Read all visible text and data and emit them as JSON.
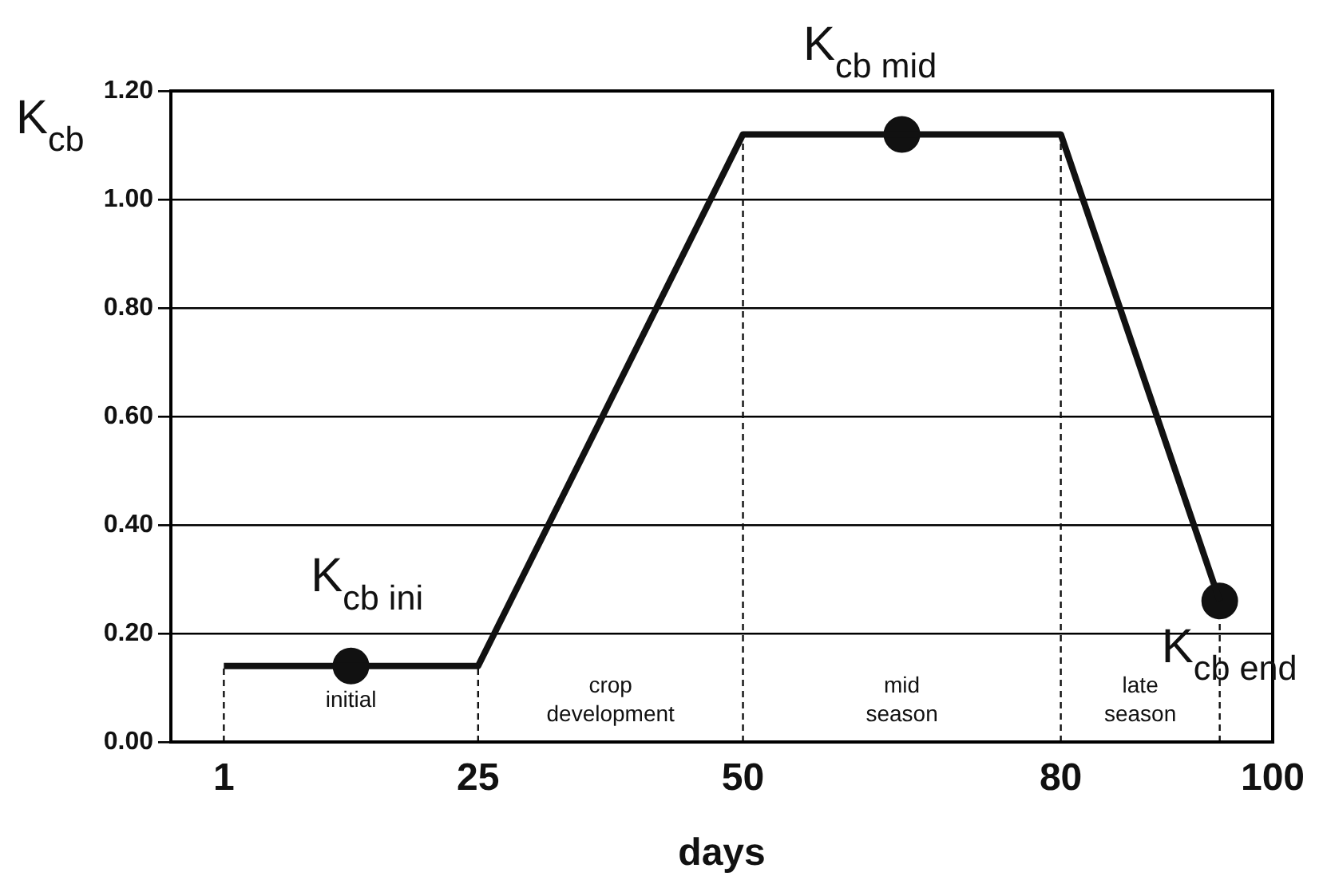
{
  "chart_data": {
    "type": "line",
    "xlabel": "days",
    "ylabel": "K$_{cb}$",
    "xlim": [
      -4,
      100
    ],
    "xticks": [
      1,
      25,
      50,
      80,
      100
    ],
    "ylim": [
      0,
      1.2
    ],
    "yticks": [
      {
        "value": 0,
        "label": "0.00"
      },
      {
        "value": 0.2,
        "label": "0.20"
      },
      {
        "value": 0.4,
        "label": "0.40"
      },
      {
        "value": 0.6,
        "label": "0.60"
      },
      {
        "value": 0.8,
        "label": "0.80"
      },
      {
        "value": 1.0,
        "label": "1.00"
      },
      {
        "value": 1.2,
        "label": "1.20"
      }
    ],
    "grid": "y",
    "legend": false,
    "series": [
      {
        "color": "#111111",
        "marker": "none",
        "x": [
          1,
          25,
          50,
          80,
          95
        ],
        "values": [
          0.14,
          0.14,
          1.12,
          1.12,
          0.26
        ]
      },
      {
        "type": "scatter",
        "color": "#111111",
        "marker": "circle",
        "x": [
          13,
          65,
          95
        ],
        "values": [
          0.14,
          1.12,
          0.26
        ]
      }
    ],
    "ref_lines": [
      {
        "axis": "x",
        "value": 1,
        "line_style": "dashed",
        "color": "#111111"
      },
      {
        "axis": "x",
        "value": 25,
        "line_style": "dashed",
        "color": "#111111"
      },
      {
        "axis": "x",
        "value": 50,
        "line_style": "dashed",
        "color": "#111111"
      },
      {
        "axis": "x",
        "value": 80,
        "line_style": "dashed",
        "color": "#111111"
      },
      {
        "axis": "x",
        "value": 95,
        "line_style": "dashed",
        "color": "#111111"
      }
    ],
    "annotations": [
      {
        "text": "K$_{cb ini}$",
        "x": 13,
        "y": 0.14
      },
      {
        "text": "K$_{cb mid}$",
        "x": 65,
        "y": 1.12
      },
      {
        "text": "K$_{cb end}$",
        "x": 95,
        "y": 0.26
      },
      "initial",
      "crop development",
      "mid season",
      "late season"
    ]
  }
}
